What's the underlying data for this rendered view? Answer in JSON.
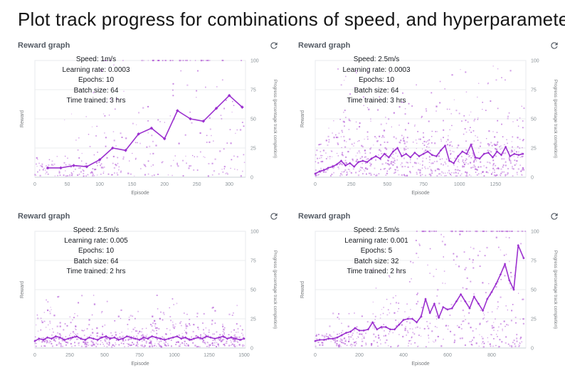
{
  "page_title": "Plot track progress for combinations of speed, and hyperparameters",
  "icons": {
    "refresh": "circular-arrow-refresh"
  },
  "colors": {
    "line": "#9b30cf",
    "scatter": "#b257d6",
    "grid": "#ebedef",
    "border": "#e7eaec",
    "axis": "#c9d1d6",
    "tick_text": "#8b9398",
    "axis_label_text": "#76797c",
    "header_text": "#545b64",
    "title_text": "#161616"
  },
  "chart_data": [
    {
      "type": "scatter",
      "header": "Reward graph",
      "annotations": [
        "Speed: 1m/s",
        "Learning rate: 0.0003",
        "Epochs: 10",
        "Batch size: 64",
        "Time trained: 3 hrs"
      ],
      "xlabel": "Episode",
      "ylabel_left": "Reward",
      "ylabel_right": "Progress (percentage track completion)",
      "xlim": [
        0,
        325
      ],
      "ylim": [
        0,
        100
      ],
      "x_ticks": [
        0,
        50,
        100,
        150,
        200,
        250,
        300
      ],
      "y_ticks": [
        0,
        25,
        50,
        75,
        100
      ],
      "line": {
        "points": [
          [
            20,
            8
          ],
          [
            40,
            8
          ],
          [
            60,
            10
          ],
          [
            80,
            9
          ],
          [
            100,
            15
          ],
          [
            120,
            25
          ],
          [
            140,
            23
          ],
          [
            160,
            37
          ],
          [
            180,
            42
          ],
          [
            200,
            33
          ],
          [
            220,
            57
          ],
          [
            240,
            50
          ],
          [
            260,
            48
          ],
          [
            280,
            59
          ],
          [
            300,
            70
          ],
          [
            320,
            60
          ]
        ]
      },
      "scatter": {
        "seed": 11,
        "bands": [
          {
            "count": 42,
            "x": [
              95,
              325
            ],
            "y": [
              100,
              100
            ],
            "bias": 1
          },
          {
            "count": 50,
            "x": [
              0,
              130
            ],
            "y": [
              1,
              12
            ],
            "bias": 1.2
          },
          {
            "count": 130,
            "x": [
              0,
              325
            ],
            "y": [
              1,
              18
            ],
            "bias": 1.3
          },
          {
            "count": 75,
            "x": [
              40,
              325
            ],
            "y": [
              18,
              55
            ],
            "bias": 1.4
          },
          {
            "count": 30,
            "x": [
              90,
              325
            ],
            "y": [
              55,
              97
            ],
            "bias": 1.2
          }
        ]
      }
    },
    {
      "type": "scatter",
      "header": "Reward graph",
      "annotations": [
        "Speed: 2.5m/s",
        "Learning rate: 0.0003",
        "Epochs: 10",
        "Batch size: 64",
        "Time trained: 3 hrs"
      ],
      "xlabel": "Episode",
      "ylabel_left": "Reward",
      "ylabel_right": "Progress (percentage track completion)",
      "xlim": [
        0,
        1460
      ],
      "ylim": [
        0,
        100
      ],
      "x_ticks": [
        0,
        250,
        500,
        750,
        1000,
        1250
      ],
      "y_ticks": [
        0,
        25,
        50,
        75,
        100
      ],
      "line": {
        "points": [
          [
            0,
            3
          ],
          [
            30,
            5
          ],
          [
            60,
            6
          ],
          [
            90,
            8
          ],
          [
            120,
            9
          ],
          [
            150,
            11
          ],
          [
            180,
            14
          ],
          [
            210,
            10
          ],
          [
            240,
            12
          ],
          [
            270,
            9
          ],
          [
            300,
            13
          ],
          [
            330,
            14
          ],
          [
            360,
            13
          ],
          [
            390,
            16
          ],
          [
            420,
            18
          ],
          [
            450,
            16
          ],
          [
            480,
            20
          ],
          [
            510,
            17
          ],
          [
            540,
            22
          ],
          [
            570,
            25
          ],
          [
            600,
            18
          ],
          [
            630,
            20
          ],
          [
            660,
            17
          ],
          [
            690,
            21
          ],
          [
            720,
            18
          ],
          [
            750,
            20
          ],
          [
            780,
            22
          ],
          [
            810,
            19
          ],
          [
            840,
            18
          ],
          [
            870,
            23
          ],
          [
            900,
            27
          ],
          [
            930,
            14
          ],
          [
            960,
            12
          ],
          [
            990,
            18
          ],
          [
            1020,
            22
          ],
          [
            1050,
            20
          ],
          [
            1080,
            28
          ],
          [
            1110,
            17
          ],
          [
            1140,
            16
          ],
          [
            1170,
            20
          ],
          [
            1200,
            21
          ],
          [
            1230,
            17
          ],
          [
            1260,
            22
          ],
          [
            1290,
            19
          ],
          [
            1320,
            26
          ],
          [
            1350,
            18
          ],
          [
            1380,
            20
          ],
          [
            1410,
            19
          ],
          [
            1440,
            20
          ]
        ]
      },
      "scatter": {
        "seed": 22,
        "bands": [
          {
            "count": 330,
            "x": [
              0,
              1450
            ],
            "y": [
              1,
              15
            ],
            "bias": 1.2
          },
          {
            "count": 230,
            "x": [
              0,
              1450
            ],
            "y": [
              15,
              32
            ],
            "bias": 1.3
          },
          {
            "count": 130,
            "x": [
              80,
              1450
            ],
            "y": [
              32,
              58
            ],
            "bias": 1.5
          },
          {
            "count": 55,
            "x": [
              150,
              1450
            ],
            "y": [
              58,
              97
            ],
            "bias": 1.6
          }
        ]
      }
    },
    {
      "type": "scatter",
      "header": "Reward graph",
      "annotations": [
        "Speed: 2.5m/s",
        "Learning rate: 0.005",
        "Epochs: 10",
        "Batch size: 64",
        "Time trained: 2 hrs"
      ],
      "xlabel": "Episode",
      "ylabel_left": "Reward",
      "ylabel_right": "Progress (percentage track completion)",
      "xlim": [
        0,
        1510
      ],
      "ylim": [
        0,
        100
      ],
      "x_ticks": [
        0,
        250,
        500,
        750,
        1000,
        1250,
        1500
      ],
      "y_ticks": [
        0,
        25,
        50,
        75,
        100
      ],
      "line": {
        "points": [
          [
            0,
            6
          ],
          [
            30,
            8
          ],
          [
            60,
            7
          ],
          [
            90,
            9
          ],
          [
            120,
            8
          ],
          [
            150,
            10
          ],
          [
            180,
            9
          ],
          [
            210,
            7
          ],
          [
            240,
            8
          ],
          [
            270,
            9
          ],
          [
            300,
            10
          ],
          [
            330,
            8
          ],
          [
            360,
            7
          ],
          [
            390,
            9
          ],
          [
            420,
            8
          ],
          [
            450,
            7
          ],
          [
            480,
            9
          ],
          [
            510,
            10
          ],
          [
            540,
            8
          ],
          [
            570,
            9
          ],
          [
            600,
            7
          ],
          [
            630,
            8
          ],
          [
            660,
            10
          ],
          [
            690,
            9
          ],
          [
            720,
            8
          ],
          [
            750,
            7
          ],
          [
            780,
            9
          ],
          [
            810,
            8
          ],
          [
            840,
            10
          ],
          [
            870,
            9
          ],
          [
            900,
            8
          ],
          [
            930,
            7
          ],
          [
            960,
            8
          ],
          [
            990,
            9
          ],
          [
            1020,
            10
          ],
          [
            1050,
            8
          ],
          [
            1080,
            9
          ],
          [
            1110,
            7
          ],
          [
            1140,
            8
          ],
          [
            1170,
            9
          ],
          [
            1200,
            8
          ],
          [
            1230,
            10
          ],
          [
            1260,
            9
          ],
          [
            1290,
            8
          ],
          [
            1320,
            9
          ],
          [
            1350,
            10
          ],
          [
            1380,
            8
          ],
          [
            1410,
            9
          ],
          [
            1440,
            8
          ],
          [
            1470,
            7
          ],
          [
            1500,
            8
          ]
        ]
      },
      "scatter": {
        "seed": 33,
        "bands": [
          {
            "count": 330,
            "x": [
              0,
              1500
            ],
            "y": [
              1,
              9
            ],
            "bias": 1.1
          },
          {
            "count": 190,
            "x": [
              0,
              1500
            ],
            "y": [
              9,
              20
            ],
            "bias": 1.4
          },
          {
            "count": 70,
            "x": [
              0,
              1500
            ],
            "y": [
              20,
              32
            ],
            "bias": 1.4
          },
          {
            "count": 22,
            "x": [
              20,
              1500
            ],
            "y": [
              32,
              46
            ],
            "bias": 1.3
          }
        ]
      }
    },
    {
      "type": "scatter",
      "header": "Reward graph",
      "annotations": [
        "Speed: 2.5m/s",
        "Learning rate: 0.001",
        "Epochs: 5",
        "Batch size: 32",
        "Time trained: 2 hrs"
      ],
      "xlabel": "Episode",
      "ylabel_left": "Reward",
      "ylabel_right": "Progress (percentage track completion)",
      "xlim": [
        0,
        955
      ],
      "ylim": [
        0,
        100
      ],
      "x_ticks": [
        0,
        200,
        400,
        600,
        800
      ],
      "y_ticks": [
        0,
        25,
        50,
        75,
        100
      ],
      "line": {
        "points": [
          [
            0,
            6
          ],
          [
            20,
            7
          ],
          [
            40,
            7
          ],
          [
            60,
            8
          ],
          [
            80,
            8
          ],
          [
            100,
            9
          ],
          [
            120,
            11
          ],
          [
            140,
            13
          ],
          [
            160,
            14
          ],
          [
            180,
            17
          ],
          [
            200,
            15
          ],
          [
            220,
            15
          ],
          [
            240,
            16
          ],
          [
            260,
            22
          ],
          [
            280,
            16
          ],
          [
            300,
            18
          ],
          [
            320,
            18
          ],
          [
            340,
            16
          ],
          [
            360,
            16
          ],
          [
            380,
            20
          ],
          [
            400,
            24
          ],
          [
            420,
            25
          ],
          [
            440,
            25
          ],
          [
            460,
            22
          ],
          [
            480,
            27
          ],
          [
            500,
            42
          ],
          [
            520,
            30
          ],
          [
            540,
            38
          ],
          [
            560,
            26
          ],
          [
            580,
            35
          ],
          [
            600,
            33
          ],
          [
            620,
            34
          ],
          [
            640,
            40
          ],
          [
            660,
            46
          ],
          [
            680,
            40
          ],
          [
            700,
            34
          ],
          [
            720,
            44
          ],
          [
            740,
            38
          ],
          [
            760,
            32
          ],
          [
            780,
            42
          ],
          [
            800,
            48
          ],
          [
            820,
            55
          ],
          [
            840,
            63
          ],
          [
            860,
            72
          ],
          [
            880,
            58
          ],
          [
            900,
            50
          ],
          [
            920,
            88
          ],
          [
            945,
            77
          ]
        ]
      },
      "scatter": {
        "seed": 44,
        "bands": [
          {
            "count": 60,
            "x": [
              440,
              955
            ],
            "y": [
              100,
              100
            ],
            "bias": 1
          },
          {
            "count": 60,
            "x": [
              0,
              220
            ],
            "y": [
              2,
              12
            ],
            "bias": 1.2
          },
          {
            "count": 150,
            "x": [
              0,
              950
            ],
            "y": [
              1,
              13
            ],
            "bias": 1.2
          },
          {
            "count": 120,
            "x": [
              60,
              950
            ],
            "y": [
              13,
              30
            ],
            "bias": 1.3
          },
          {
            "count": 85,
            "x": [
              250,
              950
            ],
            "y": [
              30,
              68
            ],
            "bias": 1.4
          },
          {
            "count": 45,
            "x": [
              420,
              950
            ],
            "y": [
              68,
              98
            ],
            "bias": 1.2
          }
        ]
      }
    }
  ]
}
